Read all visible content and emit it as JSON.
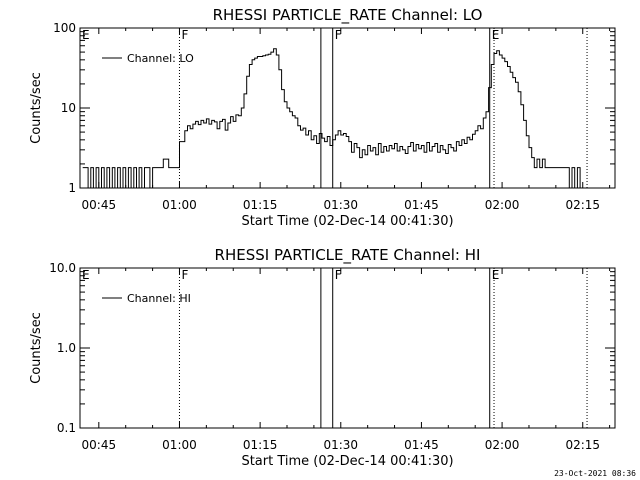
{
  "chart_data": [
    {
      "type": "line",
      "title": "RHESSI PARTICLE_RATE Channel: LO",
      "xlabel": "Start Time (02-Dec-14 00:41:30)",
      "ylabel": "Counts/sec",
      "yscale": "log",
      "ylim": [
        1,
        100
      ],
      "ytick_labels": [
        "1",
        "10",
        "100"
      ],
      "ytick_values": [
        1,
        10,
        100
      ],
      "xlim_minutes": [
        41.5,
        141
      ],
      "xtick_labels": [
        "00:45",
        "01:00",
        "01:15",
        "01:30",
        "01:45",
        "02:00",
        "02:15"
      ],
      "xtick_minutes": [
        45,
        60,
        75,
        90,
        105,
        120,
        135
      ],
      "legend": "Channel: LO",
      "markers": [
        {
          "label": "E",
          "minute": 41.5,
          "style": "none"
        },
        {
          "label": "F",
          "minute": 60,
          "style": "dotted"
        },
        {
          "label": "",
          "minute": 86.3,
          "style": "solid"
        },
        {
          "label": "F",
          "minute": 88.5,
          "style": "solid"
        },
        {
          "label": "E",
          "minute": 117.7,
          "style": "solid"
        },
        {
          "label": "",
          "minute": 118.5,
          "style": "dotted"
        },
        {
          "label": "",
          "minute": 135.8,
          "style": "dotted"
        }
      ],
      "series": [
        {
          "values": [
            [
              42,
              1.8
            ],
            [
              42.5,
              1.8
            ],
            [
              43,
              1
            ],
            [
              43.5,
              1.8
            ],
            [
              44,
              1
            ],
            [
              44.5,
              1.8
            ],
            [
              45,
              1
            ],
            [
              45.5,
              1.8
            ],
            [
              46,
              1
            ],
            [
              46.5,
              1.8
            ],
            [
              47,
              1
            ],
            [
              47.5,
              1.8
            ],
            [
              48,
              1
            ],
            [
              48.5,
              1.8
            ],
            [
              49,
              1
            ],
            [
              49.5,
              1.8
            ],
            [
              50,
              1
            ],
            [
              50.5,
              1.8
            ],
            [
              51,
              1
            ],
            [
              51.5,
              1.8
            ],
            [
              52,
              1
            ],
            [
              52.5,
              1.8
            ],
            [
              53,
              1
            ],
            [
              53.5,
              1.8
            ],
            [
              54,
              1.8
            ],
            [
              54.5,
              1
            ],
            [
              55,
              1.8
            ],
            [
              55.5,
              1.8
            ],
            [
              56,
              1.8
            ],
            [
              56.5,
              1.8
            ],
            [
              57,
              2.3
            ],
            [
              57.5,
              2.3
            ],
            [
              58,
              1.8
            ],
            [
              58.5,
              1.8
            ],
            [
              59,
              1.8
            ],
            [
              59.5,
              1.8
            ],
            [
              60,
              3.8
            ],
            [
              60.5,
              3.8
            ],
            [
              61,
              5.2
            ],
            [
              61.5,
              6.0
            ],
            [
              62,
              5.5
            ],
            [
              62.5,
              6.3
            ],
            [
              63,
              6.8
            ],
            [
              63.5,
              6.2
            ],
            [
              64,
              7.0
            ],
            [
              64.5,
              6.5
            ],
            [
              65,
              7.3
            ],
            [
              65.5,
              6.3
            ],
            [
              66,
              7.0
            ],
            [
              66.5,
              6.7
            ],
            [
              67,
              5.5
            ],
            [
              67.5,
              6.8
            ],
            [
              68,
              7.2
            ],
            [
              68.5,
              5.3
            ],
            [
              69,
              6.5
            ],
            [
              69.5,
              7.8
            ],
            [
              70,
              6.8
            ],
            [
              70.5,
              8.2
            ],
            [
              71,
              8.0
            ],
            [
              71.5,
              10
            ],
            [
              72,
              15
            ],
            [
              72.5,
              25
            ],
            [
              73,
              35
            ],
            [
              73.5,
              40
            ],
            [
              74,
              42
            ],
            [
              74.5,
              44
            ],
            [
              75,
              44
            ],
            [
              75.5,
              45
            ],
            [
              76,
              46
            ],
            [
              76.5,
              47
            ],
            [
              77,
              50
            ],
            [
              77.5,
              55
            ],
            [
              78,
              46
            ],
            [
              78.5,
              30
            ],
            [
              79,
              17
            ],
            [
              79.5,
              12
            ],
            [
              80,
              10
            ],
            [
              80.5,
              9
            ],
            [
              81,
              8
            ],
            [
              81.5,
              7.5
            ],
            [
              82,
              6
            ],
            [
              82.5,
              5.3
            ],
            [
              83,
              5.6
            ],
            [
              83.5,
              4.6
            ],
            [
              84,
              5.2
            ],
            [
              84.5,
              4.0
            ],
            [
              85,
              4.5
            ],
            [
              85.5,
              3.6
            ],
            [
              86,
              4.8
            ],
            [
              86.5,
              4.2
            ],
            [
              87,
              3.8
            ],
            [
              87.5,
              4.4
            ],
            [
              88,
              3.4
            ],
            [
              88.5,
              4.0
            ],
            [
              89,
              4.6
            ],
            [
              89.5,
              5.2
            ],
            [
              90,
              4.6
            ],
            [
              90.5,
              4.8
            ],
            [
              91,
              4.4
            ],
            [
              91.5,
              3.8
            ],
            [
              92,
              2.8
            ],
            [
              92.5,
              3.6
            ],
            [
              93,
              3.2
            ],
            [
              93.5,
              2.4
            ],
            [
              94,
              3.0
            ],
            [
              94.5,
              2.6
            ],
            [
              95,
              3.4
            ],
            [
              95.5,
              2.9
            ],
            [
              96,
              3.2
            ],
            [
              96.5,
              2.6
            ],
            [
              97,
              3.6
            ],
            [
              97.5,
              2.8
            ],
            [
              98,
              3.3
            ],
            [
              98.5,
              2.9
            ],
            [
              99,
              3.4
            ],
            [
              99.5,
              3.1
            ],
            [
              100,
              3.6
            ],
            [
              100.5,
              2.9
            ],
            [
              101,
              3.3
            ],
            [
              101.5,
              3.0
            ],
            [
              102,
              2.7
            ],
            [
              102.5,
              3.3
            ],
            [
              103,
              3.7
            ],
            [
              103.5,
              2.9
            ],
            [
              104,
              3.5
            ],
            [
              104.5,
              3.1
            ],
            [
              105,
              3.4
            ],
            [
              105.5,
              2.8
            ],
            [
              106,
              3.7
            ],
            [
              106.5,
              2.9
            ],
            [
              107,
              3.3
            ],
            [
              107.5,
              3.6
            ],
            [
              108,
              2.8
            ],
            [
              108.5,
              3.4
            ],
            [
              109,
              3.0
            ],
            [
              109.5,
              2.7
            ],
            [
              110,
              3.5
            ],
            [
              110.5,
              3.2
            ],
            [
              111,
              2.9
            ],
            [
              111.5,
              3.8
            ],
            [
              112,
              3.4
            ],
            [
              112.5,
              4.0
            ],
            [
              113,
              3.6
            ],
            [
              113.5,
              4.3
            ],
            [
              114,
              4.0
            ],
            [
              114.5,
              4.7
            ],
            [
              115,
              5.2
            ],
            [
              115.5,
              6.0
            ],
            [
              116,
              5.5
            ],
            [
              116.5,
              7.5
            ],
            [
              117,
              9.0
            ],
            [
              117.5,
              18
            ],
            [
              118,
              35
            ],
            [
              118.5,
              48
            ],
            [
              119,
              52
            ],
            [
              119.5,
              46
            ],
            [
              120,
              42
            ],
            [
              120.5,
              38
            ],
            [
              121,
              33
            ],
            [
              121.5,
              28
            ],
            [
              122,
              24
            ],
            [
              122.5,
              21
            ],
            [
              123,
              16
            ],
            [
              123.5,
              11
            ],
            [
              124,
              7
            ],
            [
              124.5,
              4.5
            ],
            [
              125,
              3.2
            ],
            [
              125.5,
              2.4
            ],
            [
              126,
              1.8
            ],
            [
              126.5,
              2.3
            ],
            [
              127,
              1.8
            ],
            [
              127.5,
              2.3
            ],
            [
              128,
              1.8
            ],
            [
              128.5,
              1.8
            ],
            [
              129,
              1.8
            ],
            [
              129.5,
              1.8
            ],
            [
              130,
              1.8
            ],
            [
              130.5,
              1.8
            ],
            [
              131,
              1.8
            ],
            [
              131.5,
              1.8
            ],
            [
              132,
              1.8
            ],
            [
              132.5,
              1
            ],
            [
              133,
              1.8
            ],
            [
              133.5,
              1
            ],
            [
              134,
              1.8
            ],
            [
              134.5,
              1
            ]
          ]
        }
      ]
    },
    {
      "type": "line",
      "title": "RHESSI PARTICLE_RATE Channel: HI",
      "xlabel": "Start Time (02-Dec-14 00:41:30)",
      "ylabel": "Counts/sec",
      "yscale": "log",
      "ylim": [
        0.1,
        10
      ],
      "ytick_labels": [
        "0.1",
        "1.0",
        "10.0"
      ],
      "ytick_values": [
        0.1,
        1,
        10
      ],
      "xlim_minutes": [
        41.5,
        141
      ],
      "xtick_labels": [
        "00:45",
        "01:00",
        "01:15",
        "01:30",
        "01:45",
        "02:00",
        "02:15"
      ],
      "xtick_minutes": [
        45,
        60,
        75,
        90,
        105,
        120,
        135
      ],
      "legend": "Channel: HI",
      "markers": [
        {
          "label": "E",
          "minute": 41.5,
          "style": "none"
        },
        {
          "label": "F",
          "minute": 60,
          "style": "dotted"
        },
        {
          "label": "",
          "minute": 86.3,
          "style": "solid"
        },
        {
          "label": "F",
          "minute": 88.5,
          "style": "solid"
        },
        {
          "label": "E",
          "minute": 117.7,
          "style": "solid"
        },
        {
          "label": "",
          "minute": 118.5,
          "style": "dotted"
        },
        {
          "label": "",
          "minute": 135.8,
          "style": "dotted"
        }
      ],
      "series": []
    }
  ],
  "timestamp": "23-Oct-2021 08:36"
}
